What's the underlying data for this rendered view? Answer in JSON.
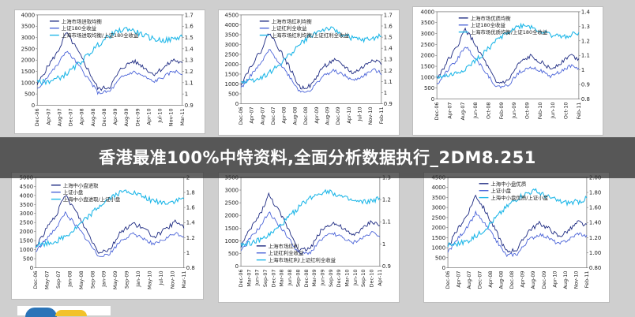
{
  "caption": "香港最准100%中特资料,全面分析数据执行_2DM8.251",
  "chart_data": [
    {
      "type": "line",
      "legend": [
        "上海市场进取均衡",
        "上证180全收益",
        "上海市场进取均衡/上证180全收益"
      ],
      "left_ticks": [
        "0",
        "500",
        "1000",
        "1500",
        "2000",
        "2500",
        "3000",
        "3500",
        "4000"
      ],
      "right_ticks": [
        "0.9",
        "1",
        "1.1",
        "1.2",
        "1.3",
        "1.4",
        "1.5",
        "1.6",
        "1.7"
      ],
      "x_ticks": [
        "Dec-06",
        "Apr-07",
        "Aug-07",
        "Dec-07",
        "Apr-08",
        "Aug-08",
        "Dec-08",
        "Apr-09",
        "Aug-09",
        "Dec-09",
        "Apr-10",
        "Jul-10",
        "Nov-10",
        "Mar-11"
      ]
    },
    {
      "type": "line",
      "legend": [
        "上海市场红利均衡",
        "上证红利全收益",
        "上海市场红利均衡/上证红利全收益"
      ],
      "left_ticks": [
        "0",
        "500",
        "1000",
        "1500",
        "2000",
        "2500",
        "3000",
        "3500",
        "4000",
        "4500"
      ],
      "right_ticks": [
        "0.9",
        "1",
        "1.1",
        "1.2",
        "1.3",
        "1.4",
        "1.5",
        "1.6",
        "1.7"
      ],
      "x_ticks": [
        "Dec-06",
        "Apr-07",
        "Aug-07",
        "Dec-07",
        "Apr-08",
        "Aug-08",
        "Dec-08",
        "Apr-09",
        "Aug-09",
        "Dec-09",
        "Apr-10",
        "Jul-10",
        "Nov-10",
        "Feb-11"
      ]
    },
    {
      "type": "line",
      "legend": [
        "上海市场优质均衡",
        "上证180全收益",
        "上海市场优质均衡/上证180全收益"
      ],
      "left_ticks": [
        "0",
        "500",
        "1000",
        "1500",
        "2000",
        "2500",
        "3000",
        "3500",
        "4000"
      ],
      "right_ticks": [
        "0.8",
        "0.9",
        "1",
        "1.1",
        "1.2",
        "1.3",
        "1.4"
      ],
      "x_ticks": [
        "Dec-06",
        "Apr-07",
        "Aug-07",
        "Jun-08",
        "Oct-08",
        "Feb-09",
        "Jun-09",
        "Oct-09",
        "Feb-10",
        "Jun-10",
        "Oct-10",
        "Feb-11"
      ]
    },
    {
      "type": "line",
      "legend": [
        "上海中小盘进取",
        "上证小盘",
        "上海中小盘进取/上证小盘"
      ],
      "left_ticks": [
        "0",
        "500",
        "1000",
        "1500",
        "2000",
        "2500",
        "3000",
        "3500",
        "4000",
        "4500",
        "5000"
      ],
      "right_ticks": [
        "0.8",
        "1",
        "1.2",
        "1.4",
        "1.6",
        "1.8",
        "2"
      ],
      "x_ticks": [
        "Dec-06",
        "May-07",
        "Sep-07",
        "Jan-08",
        "May-08",
        "Sep-08",
        "Jan-09",
        "May-09",
        "Sep-09",
        "Jan-10",
        "May-10",
        "Jul-10",
        "Nov-10",
        "Mar-11"
      ]
    },
    {
      "type": "line",
      "legend": [
        "上海市场红利",
        "上证红利全收益",
        "上海市场红利/上证红利全收益"
      ],
      "left_ticks": [
        "0",
        "500",
        "1000",
        "1500",
        "2000",
        "2500",
        "3000",
        "3500"
      ],
      "right_ticks": [
        "0.9",
        "1",
        "1.1",
        "1.2",
        "1.3"
      ],
      "x_ticks": [
        "Dec-06",
        "Mar-07",
        "Jun-07",
        "Sep-07",
        "Dec-07",
        "Mar-08",
        "Jun-08",
        "Sep-08",
        "Dec-08",
        "Mar-09",
        "Jun-09",
        "Sep-09",
        "Dec-09",
        "Mar-10",
        "Jun-10",
        "Sep-10",
        "Dec-10",
        "Apr-11"
      ]
    },
    {
      "type": "line",
      "legend": [
        "上海中小盘优质",
        "上证小盘",
        "上海中小盘优质/上证小盘"
      ],
      "left_ticks": [
        "0",
        "500",
        "1000",
        "1500",
        "2000",
        "2500",
        "3000",
        "3500",
        "4000",
        "4500"
      ],
      "right_ticks": [
        "0.80",
        "1.00",
        "1.20",
        "1.40",
        "1.60",
        "1.80",
        "2.00"
      ],
      "x_ticks": [
        "Dec-06",
        "Apr-07",
        "Aug-07",
        "Dec-07",
        "Apr-08",
        "Aug-08",
        "Dec-08",
        "Apr-09",
        "Aug-09",
        "Dec-09",
        "Apr-10",
        "Aug-10",
        "Nov-10",
        "Feb-11"
      ]
    }
  ]
}
